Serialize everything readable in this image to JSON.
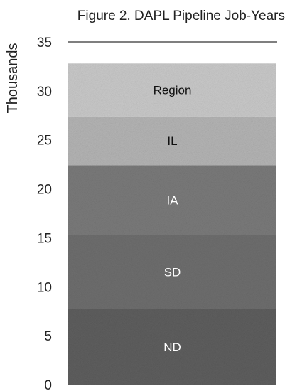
{
  "chart_data": {
    "type": "bar",
    "stacked": true,
    "title": "Figure 2. DAPL Pipeline Job-Years",
    "ylabel": "Thousands",
    "xlabel": "",
    "ylim": [
      0,
      35
    ],
    "yticks": [
      0,
      5,
      10,
      15,
      20,
      25,
      30,
      35
    ],
    "grid": true,
    "categories": [
      ""
    ],
    "series": [
      {
        "name": "ND",
        "values": [
          7.7
        ],
        "color": "#5e5e5e",
        "label_color": "#ffffff"
      },
      {
        "name": "SD",
        "values": [
          7.6
        ],
        "color": "#6e6e6e",
        "label_color": "#ffffff"
      },
      {
        "name": "IA",
        "values": [
          7.1
        ],
        "color": "#7a7a7a",
        "label_color": "#ffffff"
      },
      {
        "name": "IL",
        "values": [
          5.0
        ],
        "color": "#b4b4b4",
        "label_color": "#111111"
      },
      {
        "name": "Region",
        "values": [
          5.4
        ],
        "color": "#c9c9c9",
        "label_color": "#111111"
      }
    ]
  }
}
